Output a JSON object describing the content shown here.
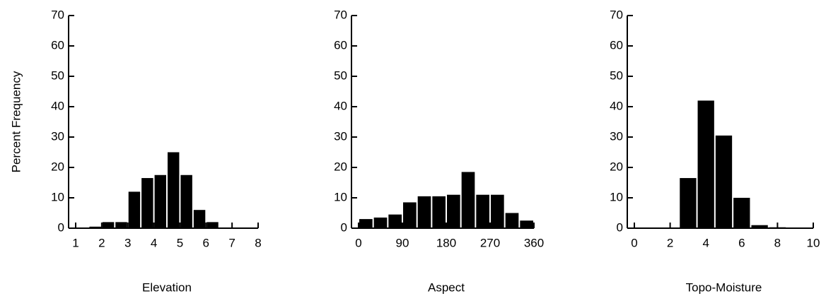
{
  "chart_data": [
    {
      "type": "histogram",
      "xlabel": "Elevation",
      "ylabel": "Percent Frequency",
      "color": "#000000",
      "bins": [
        1.5,
        2,
        2.5,
        3,
        3.5,
        4,
        4.5,
        5,
        5.5,
        6,
        6.5
      ],
      "values": [
        0.5,
        2,
        2,
        12,
        16.5,
        17.5,
        25,
        17.5,
        6,
        2
      ],
      "xlim": [
        1,
        8
      ],
      "xticks": [
        1,
        2,
        3,
        4,
        5,
        6,
        7,
        8
      ],
      "ylim": [
        0,
        70
      ],
      "yticks": [
        0,
        10,
        20,
        30,
        40,
        50,
        60,
        70
      ]
    },
    {
      "type": "histogram",
      "xlabel": "Aspect",
      "color": "#000000",
      "bins": [
        0,
        30,
        60,
        90,
        120,
        150,
        180,
        210,
        240,
        270,
        300,
        330,
        360
      ],
      "values": [
        3,
        3.5,
        4.5,
        8.5,
        10.5,
        10.5,
        11,
        18.5,
        11,
        11,
        5,
        2.5
      ],
      "xlim": [
        0,
        360
      ],
      "xticks": [
        0,
        90,
        180,
        270,
        360
      ],
      "ylim": [
        0,
        70
      ],
      "yticks": [
        0,
        10,
        20,
        30,
        40,
        50,
        60,
        70
      ]
    },
    {
      "type": "histogram",
      "xlabel": "Topo-Moisture",
      "color": "#000000",
      "bins": [
        2.5,
        3.5,
        4.5,
        5.5,
        6.5,
        7.5,
        8.5
      ],
      "values": [
        16.5,
        42,
        30.5,
        10,
        1,
        0.3
      ],
      "xlim": [
        0,
        10
      ],
      "xticks": [
        0,
        2,
        4,
        6,
        8,
        10
      ],
      "ylim": [
        0,
        70
      ],
      "yticks": [
        0,
        10,
        20,
        30,
        40,
        50,
        60,
        70
      ]
    }
  ]
}
